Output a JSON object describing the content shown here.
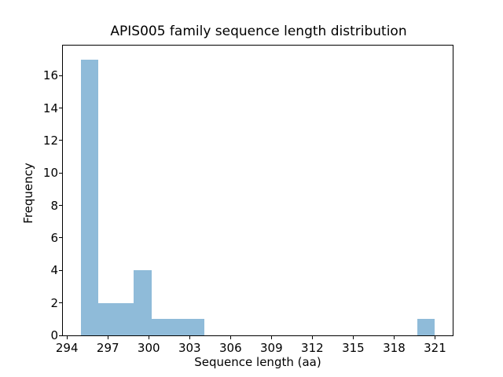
{
  "chart_data": {
    "type": "bar",
    "subtype": "histogram",
    "title": "APIS005 family sequence length distribution",
    "xlabel": "Sequence length (aa)",
    "ylabel": "Frequency",
    "bin_start": 295.0,
    "bin_width": 1.3,
    "counts": [
      17,
      2,
      2,
      4,
      1,
      1,
      1,
      0,
      0,
      0,
      0,
      0,
      0,
      0,
      0,
      0,
      0,
      0,
      0,
      1
    ],
    "xlim": [
      293.7,
      322.3
    ],
    "ylim": [
      0,
      17.85
    ],
    "xticks": [
      294,
      297,
      300,
      303,
      306,
      309,
      312,
      315,
      318,
      321
    ],
    "yticks": [
      0,
      2,
      4,
      6,
      8,
      10,
      12,
      14,
      16
    ],
    "bar_color": "#8fbbd9",
    "axis_color": "#000000",
    "background_color": "#ffffff",
    "grid": false,
    "legend": null
  }
}
